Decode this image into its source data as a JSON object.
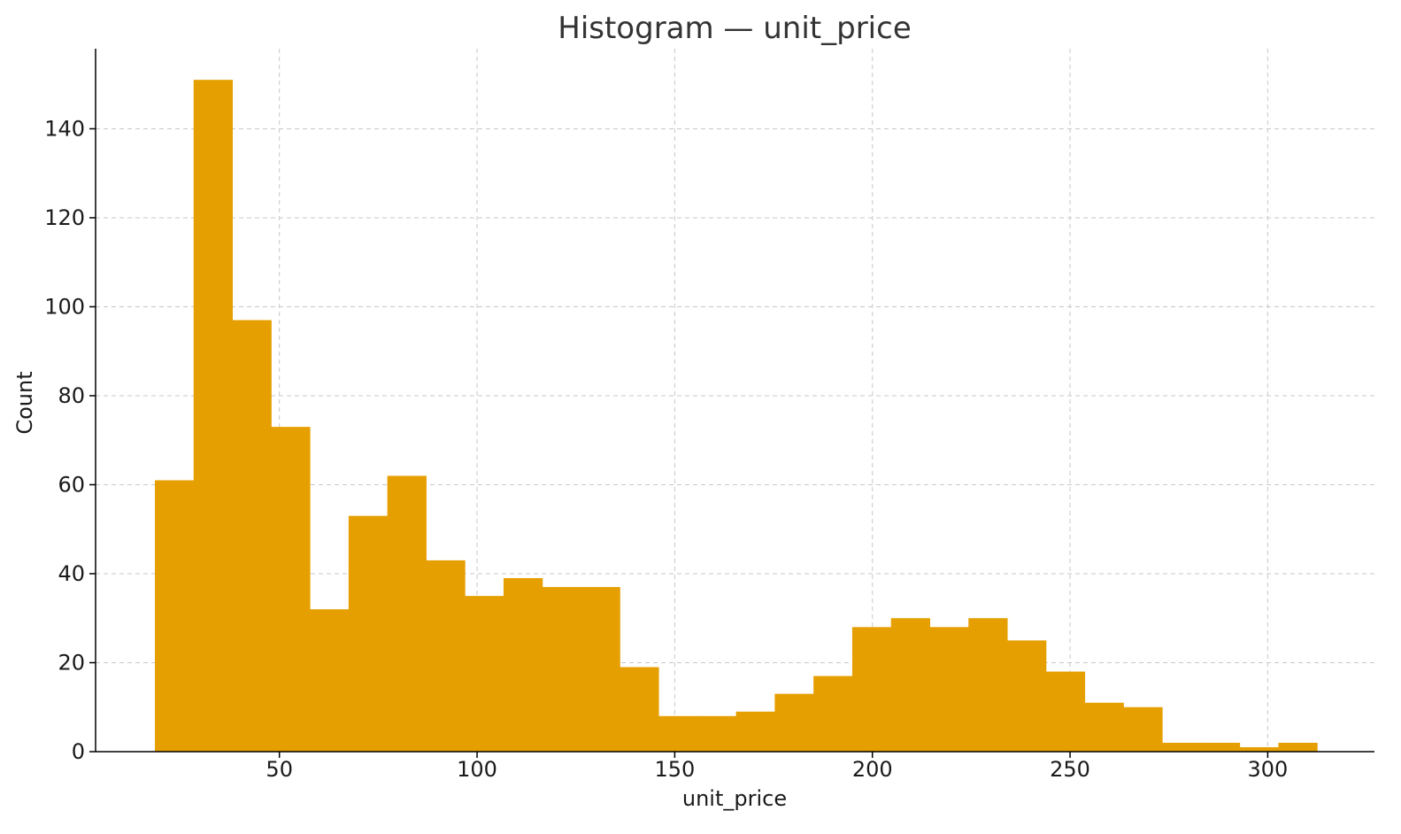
{
  "chart_data": {
    "type": "bar",
    "histogram": true,
    "title": "Histogram — unit_price",
    "xlabel": "unit_price",
    "ylabel": "Count",
    "xlim": [
      3.5,
      327
    ],
    "ylim": [
      0,
      158
    ],
    "xticks": [
      50,
      100,
      150,
      200,
      250,
      300
    ],
    "yticks": [
      0,
      20,
      40,
      60,
      80,
      100,
      120,
      140
    ],
    "grid": true,
    "bar_color": "#E69F00",
    "bin_edges": [
      18.5,
      28.3,
      38.1,
      47.9,
      57.7,
      67.5,
      77.3,
      87.1,
      96.9,
      106.7,
      116.5,
      126.3,
      136.1,
      145.9,
      155.7,
      165.5,
      175.3,
      185.1,
      194.9,
      204.7,
      214.5,
      224.3,
      234.1,
      243.9,
      253.7,
      263.5,
      273.3,
      283.1,
      292.9,
      302.7,
      312.5
    ],
    "values": [
      61,
      151,
      97,
      73,
      32,
      53,
      62,
      43,
      35,
      39,
      37,
      37,
      19,
      8,
      8,
      9,
      13,
      17,
      28,
      30,
      28,
      30,
      25,
      18,
      11,
      10,
      2,
      2,
      1,
      2
    ]
  }
}
